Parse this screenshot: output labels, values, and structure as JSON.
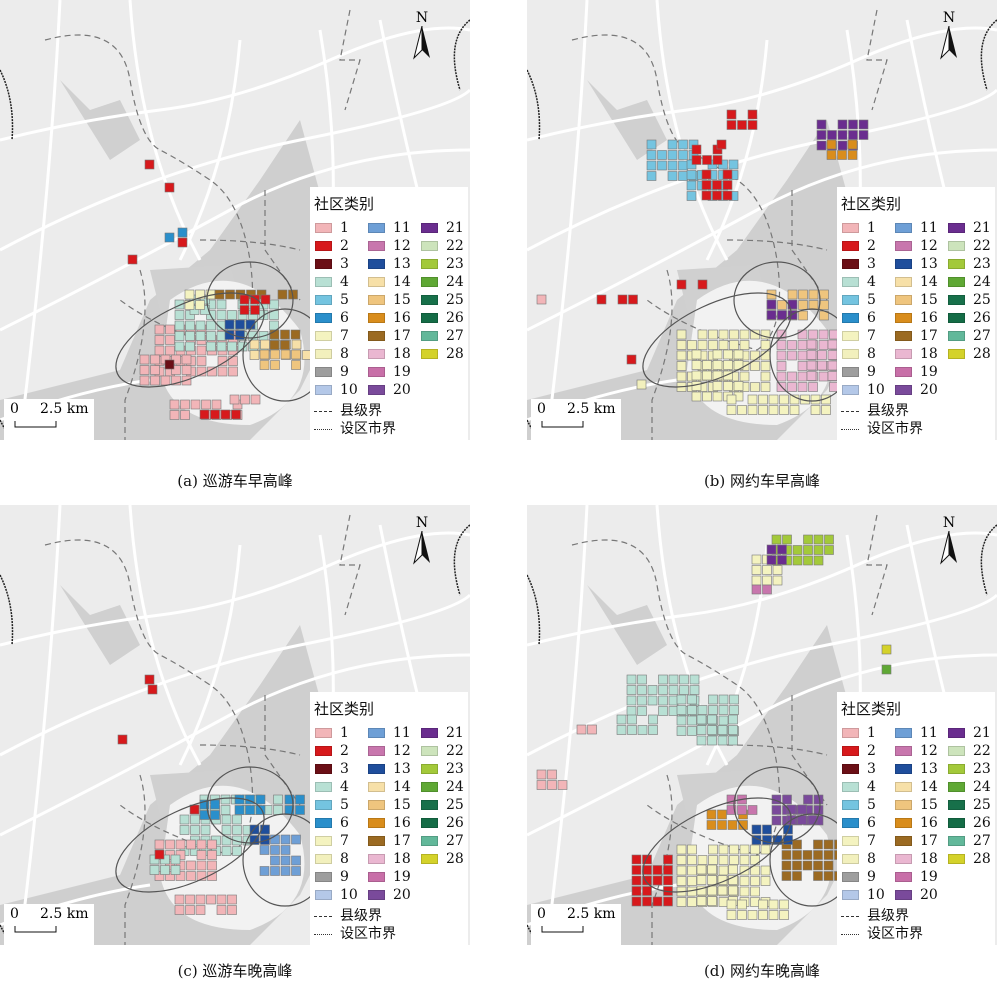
{
  "panels": [
    {
      "caption": "(a) 巡游车早高峰"
    },
    {
      "caption": "(b) 网约车早高峰"
    },
    {
      "caption": "(c) 巡游车晚高峰"
    },
    {
      "caption": "(d) 网约车晚高峰"
    }
  ],
  "legend": {
    "title": "社区类别",
    "items": [
      {
        "label": "1",
        "color": "#f2b5b8"
      },
      {
        "label": "2",
        "color": "#d7191c"
      },
      {
        "label": "3",
        "color": "#6b0f16"
      },
      {
        "label": "4",
        "color": "#b8e0d4"
      },
      {
        "label": "5",
        "color": "#74c4e0"
      },
      {
        "label": "6",
        "color": "#2a8fcb"
      },
      {
        "label": "7",
        "color": "#f4f3c0"
      },
      {
        "label": "8",
        "color": "#f2f0bd"
      },
      {
        "label": "9",
        "color": "#9e9e9e"
      },
      {
        "label": "10",
        "color": "#b4c8e8"
      },
      {
        "label": "11",
        "color": "#6e9fd6"
      },
      {
        "label": "12",
        "color": "#c876ad"
      },
      {
        "label": "13",
        "color": "#1f4e9c"
      },
      {
        "label": "14",
        "color": "#f7e0a8"
      },
      {
        "label": "15",
        "color": "#efc57e"
      },
      {
        "label": "16",
        "color": "#d98d1c"
      },
      {
        "label": "17",
        "color": "#9b6a22"
      },
      {
        "label": "18",
        "color": "#eab7d1"
      },
      {
        "label": "19",
        "color": "#c86fa8"
      },
      {
        "label": "20",
        "color": "#7a4a9b"
      },
      {
        "label": "21",
        "color": "#6a2d8f"
      },
      {
        "label": "22",
        "color": "#cde4bc"
      },
      {
        "label": "23",
        "color": "#a3c93a"
      },
      {
        "label": "24",
        "color": "#5fa834"
      },
      {
        "label": "25",
        "color": "#17704a"
      },
      {
        "label": "26",
        "color": "#146c46"
      },
      {
        "label": "27",
        "color": "#62b89a"
      },
      {
        "label": "28",
        "color": "#d4d22a"
      }
    ],
    "county_boundary": "县级界",
    "city_boundary": "设区市界"
  },
  "scale": {
    "zero": "0",
    "distance": "2.5 km"
  },
  "north": "N"
}
